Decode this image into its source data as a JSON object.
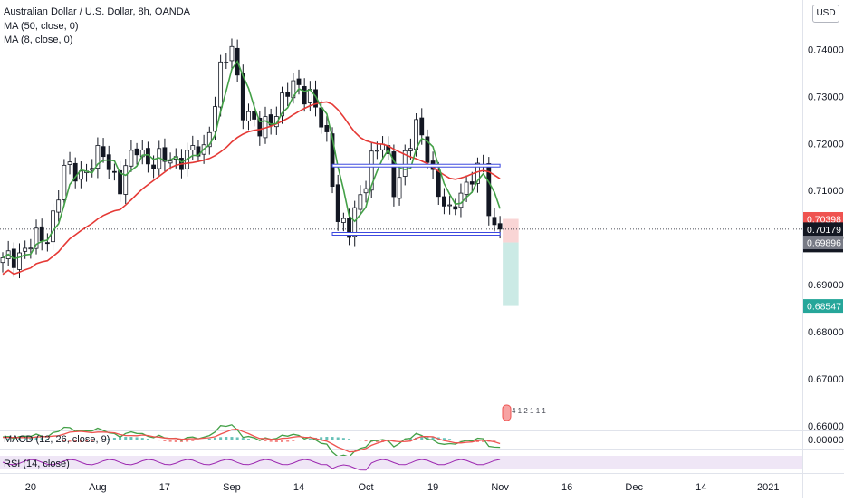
{
  "chart_data": {
    "type": "candlestick",
    "title": "Australian Dollar / U.S. Dollar, 8h, OANDA",
    "currency": "USD",
    "indicators": [
      "MA (50, close, 0)",
      "MA (8, close, 0)"
    ],
    "ylim": [
      0.659,
      0.7505
    ],
    "y_ticks": [
      "0.74000",
      "0.73000",
      "0.72000",
      "0.71000",
      "0.70000",
      "0.69000",
      "0.68000",
      "0.67000",
      "0.66000"
    ],
    "y_tick_values": [
      0.74,
      0.73,
      0.72,
      0.71,
      0.7,
      0.69,
      0.68,
      0.67,
      0.66
    ],
    "x_ticks": [
      "20",
      "Aug",
      "17",
      "Sep",
      "14",
      "Oct",
      "19",
      "Nov",
      "16",
      "Dec",
      "14",
      "2021"
    ],
    "x_tick_positions": [
      5,
      17,
      29,
      41,
      53,
      65,
      77,
      89,
      101,
      113,
      125,
      137
    ],
    "candle_count": 90,
    "anchors": [
      [
        0,
        0.6945
      ],
      [
        5,
        0.6985
      ],
      [
        8,
        0.7005
      ],
      [
        11,
        0.714
      ],
      [
        14,
        0.714
      ],
      [
        18,
        0.7175
      ],
      [
        21,
        0.7115
      ],
      [
        24,
        0.719
      ],
      [
        27,
        0.716
      ],
      [
        30,
        0.7165
      ],
      [
        33,
        0.7175
      ],
      [
        36,
        0.7185
      ],
      [
        39,
        0.735
      ],
      [
        41,
        0.74
      ],
      [
        43,
        0.728
      ],
      [
        46,
        0.722
      ],
      [
        49,
        0.7275
      ],
      [
        52,
        0.732
      ],
      [
        55,
        0.731
      ],
      [
        58,
        0.72
      ],
      [
        60,
        0.705
      ],
      [
        62,
        0.701
      ],
      [
        64,
        0.708
      ],
      [
        66,
        0.718
      ],
      [
        68,
        0.72
      ],
      [
        70,
        0.71
      ],
      [
        72,
        0.718
      ],
      [
        74,
        0.723
      ],
      [
        76,
        0.718
      ],
      [
        78,
        0.71
      ],
      [
        80,
        0.704
      ],
      [
        82,
        0.71
      ],
      [
        84,
        0.7135
      ],
      [
        86,
        0.714
      ],
      [
        87,
        0.706
      ],
      [
        88,
        0.702
      ],
      [
        89,
        0.701
      ]
    ],
    "levels": [
      {
        "name": "resistance",
        "value": 0.7153,
        "from": 59,
        "to": 89
      },
      {
        "name": "support",
        "value": 0.7008,
        "from": 59,
        "to": 89
      }
    ],
    "prices": {
      "stop": "0.70398",
      "last": "0.70179",
      "countdown": "02:46:55",
      "entry": "0.69896",
      "target": "0.68547"
    },
    "position": {
      "stop": 0.70398,
      "entry": 0.69896,
      "target": 0.68547
    },
    "macd": {
      "label": "MACD (12, 26, close, 9)",
      "tick": "0.00000"
    },
    "rsi": {
      "label": "RSI (14, close)"
    },
    "news_marker": "4 1 2 1 1 1",
    "colors": {
      "up": "#26a69a",
      "down": "#ef5350",
      "candle": "#131722",
      "ma50": "#e53935",
      "ma8": "#43a047",
      "level_band": "#3d49e0",
      "rsi": "#9c27b0",
      "stop_fill": "#f9d5d5",
      "target_fill": "#cbeae5"
    }
  }
}
